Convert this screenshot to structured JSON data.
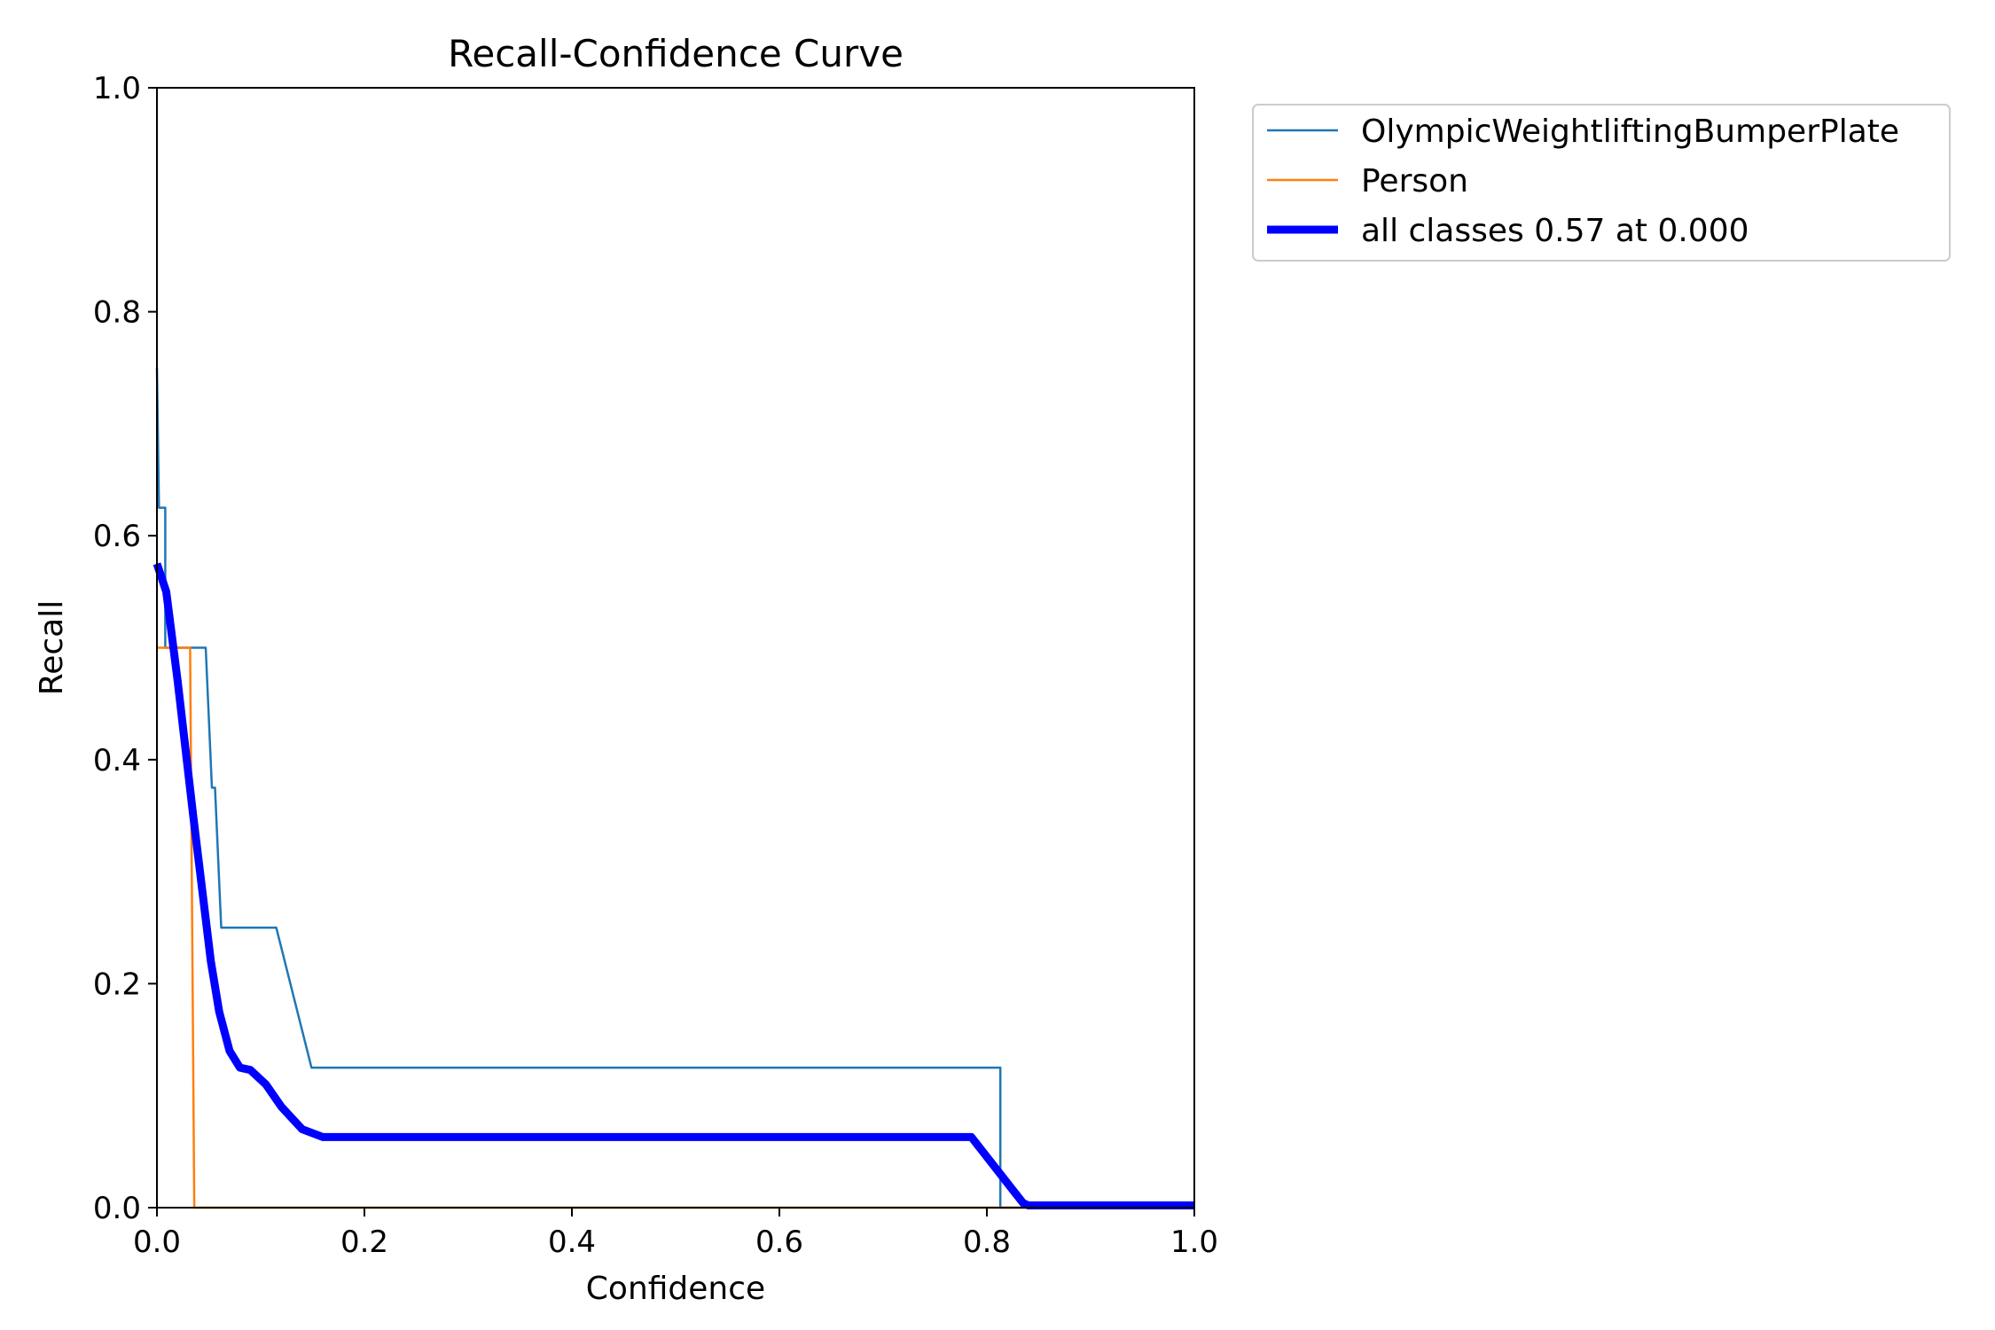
{
  "chart_data": {
    "type": "line",
    "title": "Recall-Confidence Curve",
    "xlabel": "Confidence",
    "ylabel": "Recall",
    "xlim": [
      0,
      1
    ],
    "ylim": [
      0,
      1
    ],
    "xticks": [
      "0.0",
      "0.2",
      "0.4",
      "0.6",
      "0.8",
      "1.0"
    ],
    "yticks": [
      "0.0",
      "0.2",
      "0.4",
      "0.6",
      "0.8",
      "1.0"
    ],
    "grid": false,
    "legend_position": "outside-top-right",
    "series": [
      {
        "name": "OlympicWeightliftingBumperPlate",
        "color": "#1f77b4",
        "x": [
          0.0,
          0.002,
          0.002,
          0.008,
          0.008,
          0.047,
          0.053,
          0.055,
          0.056,
          0.062,
          0.062,
          0.115,
          0.149,
          0.813,
          0.813,
          1.0
        ],
        "y": [
          0.75,
          0.625,
          0.625,
          0.625,
          0.5,
          0.5,
          0.375,
          0.375,
          0.375,
          0.25,
          0.25,
          0.25,
          0.125,
          0.125,
          0.0,
          0.0
        ]
      },
      {
        "name": "Person",
        "color": "#ff7f0e",
        "x": [
          0.0,
          0.032,
          0.036,
          1.0
        ],
        "y": [
          0.5,
          0.5,
          0.0,
          0.0
        ]
      },
      {
        "name": "all classes 0.57 at 0.000",
        "color": "#0000ff",
        "x": [
          0.0,
          0.009,
          0.02,
          0.035,
          0.052,
          0.06,
          0.07,
          0.08,
          0.09,
          0.105,
          0.12,
          0.14,
          0.16,
          0.175,
          0.785,
          0.835,
          0.84,
          1.0
        ],
        "y": [
          0.575,
          0.55,
          0.47,
          0.35,
          0.22,
          0.175,
          0.14,
          0.125,
          0.123,
          0.11,
          0.09,
          0.07,
          0.063,
          0.063,
          0.063,
          0.004,
          0.002,
          0.002
        ]
      }
    ]
  }
}
